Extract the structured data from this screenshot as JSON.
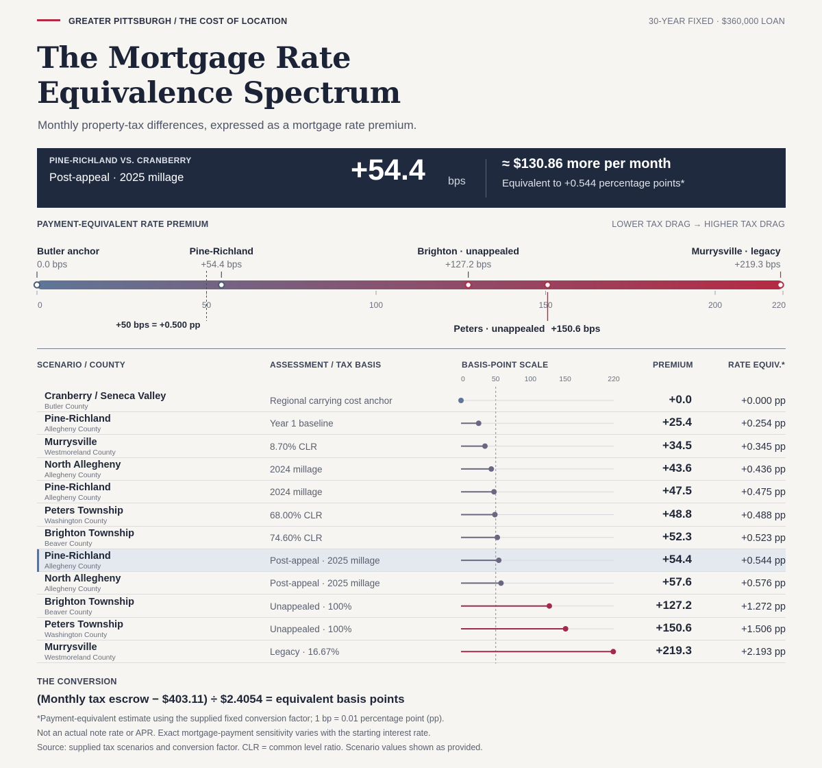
{
  "header": {
    "kicker": "GREATER PITTSBURGH / THE COST OF LOCATION",
    "loan_note": "30-YEAR FIXED · $360,000 LOAN",
    "title_line1": "The Mortgage Rate",
    "title_line2": "Equivalence Spectrum",
    "subtitle": "Monthly property-tax differences, expressed as a mortgage rate premium."
  },
  "banner": {
    "label": "PINE-RICHLAND VS. CRANBERRY",
    "sub": "Post-appeal · 2025 millage",
    "big": "+54.4",
    "unit": "bps",
    "monthly": "≈ $130.86 more per month",
    "equiv": "Equivalent to +0.544 percentage points*"
  },
  "spectrum": {
    "section_label": "PAYMENT-EQUIVALENT RATE PREMIUM",
    "range_label": "LOWER TAX DRAG → HIGHER TAX DRAG",
    "ticks": [
      0,
      50,
      100,
      150,
      200,
      220
    ],
    "reference_label": "+50 bps = +0.500 pp",
    "markers": [
      {
        "name": "Butler anchor",
        "value": "0.0 bps",
        "bps": 0,
        "pos": "above"
      },
      {
        "name": "Pine-Richland",
        "value": "+54.4 bps",
        "bps": 54.4,
        "pos": "above"
      },
      {
        "name": "Brighton · unappealed",
        "value": "+127.2 bps",
        "bps": 127.2,
        "pos": "above"
      },
      {
        "name": "Peters · unappealed",
        "value": "+150.6 bps",
        "bps": 150.6,
        "pos": "below"
      },
      {
        "name": "Murrysville · legacy",
        "value": "+219.3 bps",
        "bps": 219.3,
        "pos": "above"
      }
    ],
    "color_low": "#5f7697",
    "color_high": "#b52a44"
  },
  "table": {
    "headers": {
      "scenario": "SCENARIO / COUNTY",
      "basis": "ASSESSMENT / TAX BASIS",
      "scale": "BASIS-POINT SCALE",
      "premium": "PREMIUM",
      "equiv": "RATE EQUIV.*"
    },
    "scale_ticks": [
      0,
      50,
      100,
      150,
      220
    ]
  },
  "chart_data": {
    "type": "scatter",
    "x_label": "",
    "units": "bps",
    "xlim": [
      0,
      220
    ],
    "rows": [
      {
        "name": "Cranberry / Seneca Valley",
        "county": "Butler County",
        "basis": "Regional carrying cost anchor",
        "bps": 0.0,
        "premium": "+0.0",
        "rate_equiv": "+0.000 pp",
        "highlight": false
      },
      {
        "name": "Pine-Richland",
        "county": "Allegheny County",
        "basis": "Year 1 baseline",
        "bps": 25.4,
        "premium": "+25.4",
        "rate_equiv": "+0.254 pp",
        "highlight": false
      },
      {
        "name": "Murrysville",
        "county": "Westmoreland County",
        "basis": "8.70% CLR",
        "bps": 34.5,
        "premium": "+34.5",
        "rate_equiv": "+0.345 pp",
        "highlight": false
      },
      {
        "name": "North Allegheny",
        "county": "Allegheny County",
        "basis": "2024 millage",
        "bps": 43.6,
        "premium": "+43.6",
        "rate_equiv": "+0.436 pp",
        "highlight": false
      },
      {
        "name": "Pine-Richland",
        "county": "Allegheny County",
        "basis": "2024 millage",
        "bps": 47.5,
        "premium": "+47.5",
        "rate_equiv": "+0.475 pp",
        "highlight": false
      },
      {
        "name": "Peters Township",
        "county": "Washington County",
        "basis": "68.00% CLR",
        "bps": 48.8,
        "premium": "+48.8",
        "rate_equiv": "+0.488 pp",
        "highlight": false
      },
      {
        "name": "Brighton Township",
        "county": "Beaver County",
        "basis": "74.60% CLR",
        "bps": 52.3,
        "premium": "+52.3",
        "rate_equiv": "+0.523 pp",
        "highlight": false
      },
      {
        "name": "Pine-Richland",
        "county": "Allegheny County",
        "basis": "Post-appeal · 2025 millage",
        "bps": 54.4,
        "premium": "+54.4",
        "rate_equiv": "+0.544 pp",
        "highlight": true
      },
      {
        "name": "North Allegheny",
        "county": "Allegheny County",
        "basis": "Post-appeal · 2025 millage",
        "bps": 57.6,
        "premium": "+57.6",
        "rate_equiv": "+0.576 pp",
        "highlight": false
      },
      {
        "name": "Brighton Township",
        "county": "Beaver County",
        "basis": "Unappealed · 100%",
        "bps": 127.2,
        "premium": "+127.2",
        "rate_equiv": "+1.272 pp",
        "highlight": false
      },
      {
        "name": "Peters Township",
        "county": "Washington County",
        "basis": "Unappealed · 100%",
        "bps": 150.6,
        "premium": "+150.6",
        "rate_equiv": "+1.506 pp",
        "highlight": false
      },
      {
        "name": "Murrysville",
        "county": "Westmoreland County",
        "basis": "Legacy · 16.67%",
        "bps": 219.3,
        "premium": "+219.3",
        "rate_equiv": "+2.193 pp",
        "highlight": false
      }
    ],
    "colors": {
      "low": "#6a6880",
      "high": "#a02a50",
      "anchor": "#5f7697"
    }
  },
  "conversion": {
    "heading": "THE CONVERSION",
    "formula": "(Monthly tax escrow − $403.11) ÷ $2.4054 = equivalent basis points",
    "note1": "*Payment-equivalent estimate using the supplied fixed conversion factor; 1 bp = 0.01 percentage point (pp).",
    "note2": "Not an actual note rate or APR. Exact mortgage-payment sensitivity varies with the starting interest rate.",
    "note3": "Source: supplied tax scenarios and conversion factor. CLR = common level ratio. Scenario values shown as provided."
  }
}
